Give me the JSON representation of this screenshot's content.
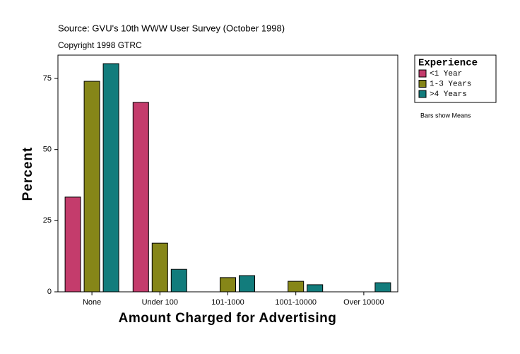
{
  "chart_data": {
    "type": "bar",
    "source": "Source: GVU's 10th WWW User Survey (October 1998)",
    "copyright": "Copyright 1998 GTRC",
    "x_label": "Amount Charged for Advertising",
    "y_label": "Percent",
    "legend_title": "Experience",
    "note": "Bars show Means",
    "categories": [
      "None",
      "Under 100",
      "101-1000",
      "1001-10000",
      "Over 10000"
    ],
    "series": [
      {
        "name": "<1 Year",
        "color": "#c43c6c",
        "values": [
          33.3,
          66.6,
          0,
          0,
          0
        ]
      },
      {
        "name": "1-3 Years",
        "color": "#868618",
        "values": [
          74.0,
          17.1,
          5.0,
          3.7,
          0
        ]
      },
      {
        "name": ">4 Years",
        "color": "#127c7c",
        "values": [
          80.2,
          7.9,
          5.7,
          2.5,
          3.2
        ]
      }
    ],
    "ylim": [
      0,
      83.2
    ],
    "yticks": [
      0,
      25,
      50,
      75
    ],
    "grid": false
  }
}
